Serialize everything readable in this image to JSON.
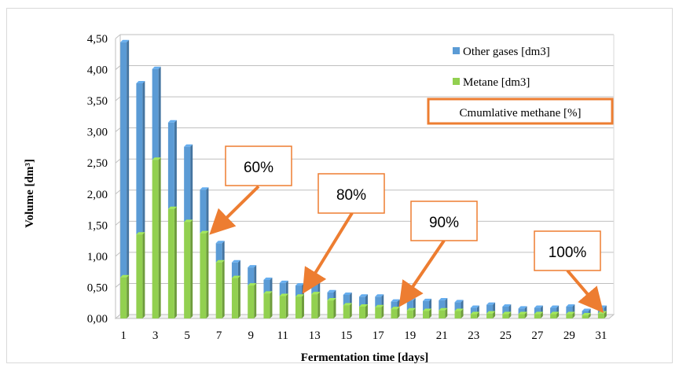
{
  "chart_data": {
    "type": "bar",
    "stacked": true,
    "title": "",
    "xlabel": "Fermentation time [days]",
    "ylabel": "Volume [dm³]",
    "ylim": [
      0,
      4.5
    ],
    "yticks": [
      "0,00",
      "0,50",
      "1,00",
      "1,50",
      "2,00",
      "2,50",
      "3,00",
      "3,50",
      "4,00",
      "4,50"
    ],
    "xtick_labels": [
      "1",
      "3",
      "5",
      "7",
      "9",
      "11",
      "13",
      "15",
      "17",
      "19",
      "21",
      "23",
      "25",
      "27",
      "29",
      "31"
    ],
    "grid": true,
    "legend_position": "top-right",
    "categories": [
      1,
      2,
      3,
      4,
      5,
      6,
      7,
      8,
      9,
      10,
      11,
      12,
      13,
      14,
      15,
      16,
      17,
      18,
      19,
      20,
      21,
      22,
      23,
      24,
      25,
      26,
      27,
      28,
      29,
      30,
      31
    ],
    "series": [
      {
        "name": "Metane [dm3]",
        "color": "#92d050",
        "values": [
          0.66,
          1.35,
          2.55,
          1.76,
          1.55,
          1.37,
          0.9,
          0.65,
          0.53,
          0.4,
          0.36,
          0.35,
          0.39,
          0.29,
          0.21,
          0.19,
          0.18,
          0.15,
          0.13,
          0.12,
          0.13,
          0.12,
          0.07,
          0.08,
          0.07,
          0.07,
          0.07,
          0.07,
          0.07,
          0.05,
          0.08
        ]
      },
      {
        "name": "Other gases [dm3]",
        "color": "#5b9bd5",
        "values": [
          3.78,
          2.43,
          1.46,
          1.39,
          1.21,
          0.7,
          0.31,
          0.25,
          0.29,
          0.22,
          0.21,
          0.18,
          0.18,
          0.13,
          0.17,
          0.16,
          0.17,
          0.12,
          0.16,
          0.16,
          0.16,
          0.14,
          0.1,
          0.14,
          0.12,
          0.09,
          0.1,
          0.1,
          0.12,
          0.07,
          0.09
        ]
      }
    ],
    "annotations": {
      "box_label": "Cmumlative methane [%]",
      "callouts": [
        {
          "label": "60%",
          "day": 6
        },
        {
          "label": "80%",
          "day": 12
        },
        {
          "label": "90%",
          "day": 18
        },
        {
          "label": "100%",
          "day": 31
        }
      ]
    }
  }
}
